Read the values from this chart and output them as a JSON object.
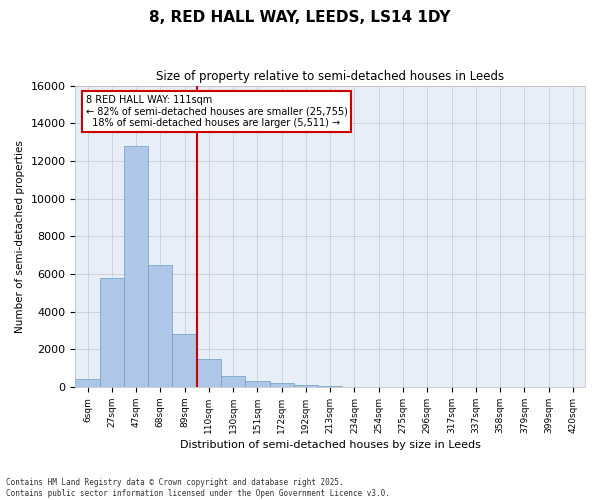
{
  "title": "8, RED HALL WAY, LEEDS, LS14 1DY",
  "subtitle": "Size of property relative to semi-detached houses in Leeds",
  "xlabel": "Distribution of semi-detached houses by size in Leeds",
  "ylabel": "Number of semi-detached properties",
  "property_label": "8 RED HALL WAY: 111sqm",
  "pct_smaller": 82,
  "pct_larger": 18,
  "n_smaller": 25755,
  "n_larger": 5511,
  "bin_labels": [
    "6sqm",
    "27sqm",
    "47sqm",
    "68sqm",
    "89sqm",
    "110sqm",
    "130sqm",
    "151sqm",
    "172sqm",
    "192sqm",
    "213sqm",
    "234sqm",
    "254sqm",
    "275sqm",
    "296sqm",
    "317sqm",
    "337sqm",
    "358sqm",
    "379sqm",
    "399sqm",
    "420sqm"
  ],
  "bar_values": [
    400,
    5800,
    12800,
    6500,
    2800,
    1500,
    600,
    300,
    200,
    80,
    30,
    20,
    10,
    5,
    3,
    2,
    1,
    1,
    0,
    0,
    0
  ],
  "bar_color": "#aec6e8",
  "bar_edge_color": "#6a9ec0",
  "vline_color": "#cc0000",
  "vline_x": 4.5,
  "grid_color": "#c0c8d8",
  "background_color": "#e8eef8",
  "ylim": [
    0,
    16000
  ],
  "yticks": [
    0,
    2000,
    4000,
    6000,
    8000,
    10000,
    12000,
    14000,
    16000
  ],
  "footnote1": "Contains HM Land Registry data © Crown copyright and database right 2025.",
  "footnote2": "Contains public sector information licensed under the Open Government Licence v3.0."
}
